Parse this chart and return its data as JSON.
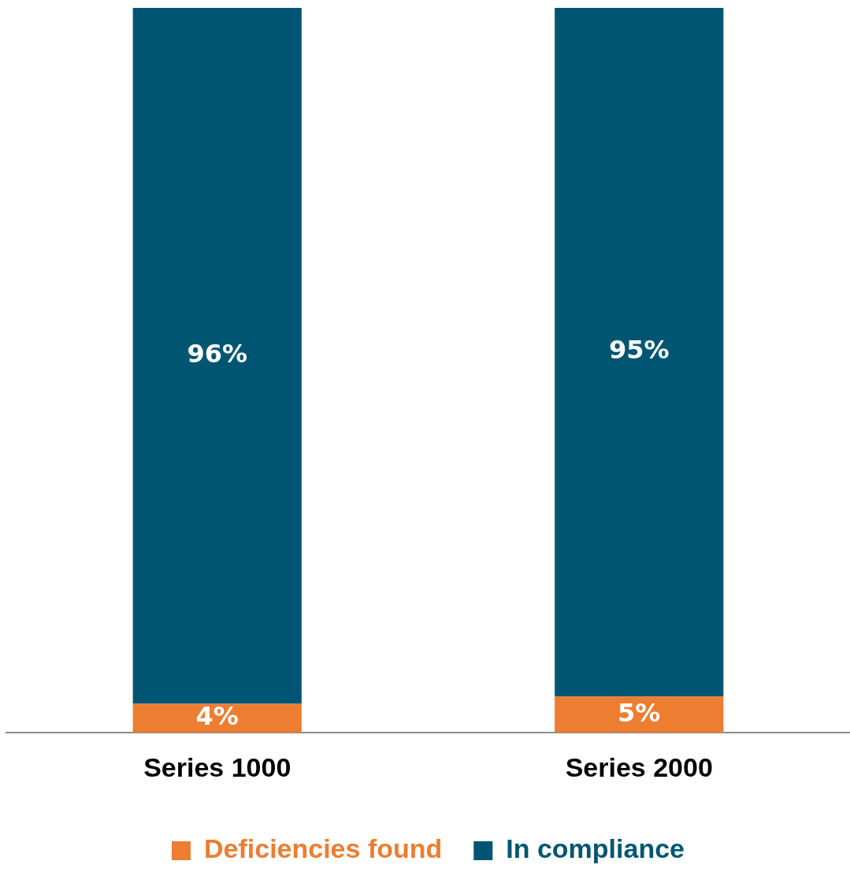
{
  "chart_data": {
    "type": "bar",
    "stacked": true,
    "categories": [
      "Series 1000",
      "Series 2000"
    ],
    "series": [
      {
        "name": "Deficiencies found",
        "color": "#ed7d31",
        "values": [
          4,
          5
        ],
        "value_labels": [
          "4%",
          "5%"
        ]
      },
      {
        "name": "In compliance",
        "color": "#005672",
        "values": [
          96,
          95
        ],
        "value_labels": [
          "96%",
          "95%"
        ]
      }
    ],
    "legend": "bottom",
    "grid": false
  }
}
